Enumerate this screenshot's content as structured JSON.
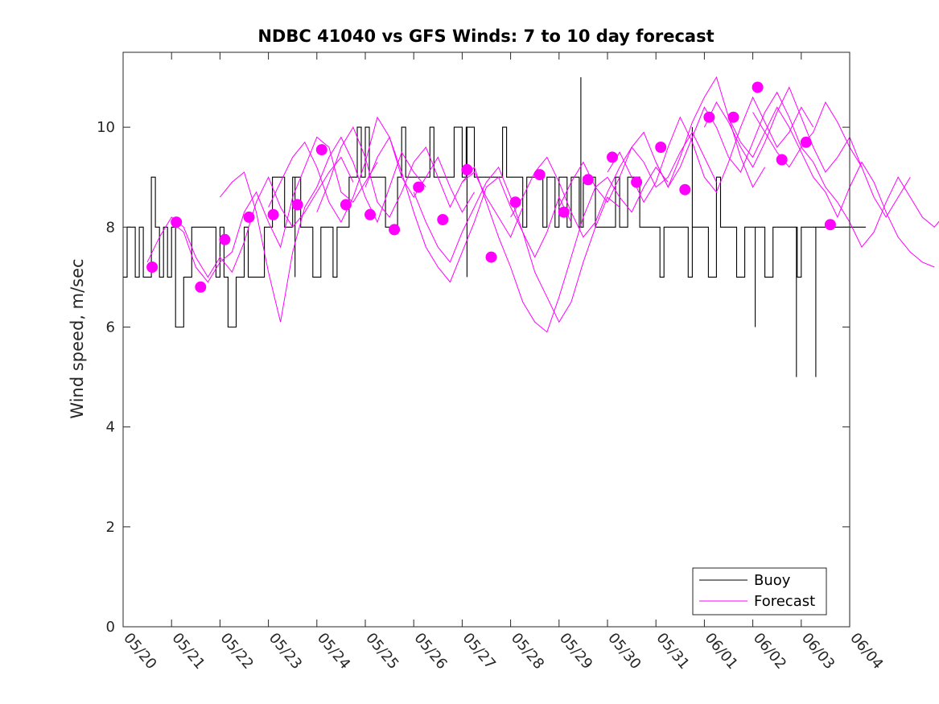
{
  "chart_data": {
    "type": "line",
    "title": "NDBC 41040 vs GFS Winds: 7 to 10 day forecast",
    "xlabel": "",
    "ylabel": "Wind speed, m/sec",
    "x_range_days": [
      0,
      15
    ],
    "x_ticks": [
      "05/20",
      "05/21",
      "05/22",
      "05/23",
      "05/24",
      "05/25",
      "05/26",
      "05/27",
      "05/28",
      "05/29",
      "05/30",
      "05/31",
      "06/01",
      "06/02",
      "06/03",
      "06/04"
    ],
    "ylim": [
      0,
      11.5
    ],
    "y_ticks": [
      0,
      2,
      4,
      6,
      8,
      10
    ],
    "grid": false,
    "legend": {
      "placement": "bottom-right",
      "entries": [
        "Buoy",
        "Forecast"
      ]
    },
    "colors": {
      "buoy": "#000000",
      "forecast": "#ff00ff"
    },
    "series": [
      {
        "name": "Buoy",
        "style": "step",
        "x_start_day": 0,
        "x_step_hours": 2,
        "values": [
          7,
          8,
          8,
          7,
          8,
          7,
          7,
          9,
          8,
          7,
          8,
          7,
          8,
          6,
          6,
          7,
          7,
          8,
          8,
          8,
          8,
          8,
          8,
          7,
          8,
          7,
          6,
          6,
          7,
          7,
          8,
          7,
          7,
          7,
          7,
          8,
          8,
          9,
          9,
          9,
          8,
          8,
          9,
          9,
          8,
          8,
          8,
          7,
          7,
          8,
          8,
          8,
          7,
          8,
          8,
          8,
          9,
          9,
          10,
          9,
          10,
          9,
          9,
          9,
          9,
          8,
          8,
          8,
          9,
          10,
          9,
          9,
          9,
          9,
          9,
          9,
          10,
          9,
          9,
          9,
          9,
          9,
          10,
          10,
          9,
          10,
          10,
          9,
          9,
          9,
          9,
          9,
          9,
          9,
          10,
          9,
          9,
          9,
          9,
          8,
          9,
          9,
          9,
          9,
          8,
          9,
          9,
          8,
          9,
          9,
          8,
          9,
          9,
          8,
          9,
          9,
          9,
          8,
          8,
          8,
          8,
          8,
          9,
          8,
          8,
          9,
          9,
          9,
          8,
          8,
          8,
          8,
          8,
          7,
          8,
          8,
          8,
          8,
          8,
          8,
          7,
          8,
          8,
          8,
          8,
          7,
          7,
          9,
          8,
          8,
          8,
          8,
          7,
          7,
          8,
          8,
          8,
          8,
          8,
          7,
          7,
          8,
          8,
          8,
          8,
          8,
          8,
          7,
          8,
          8,
          8,
          8,
          8,
          8,
          8,
          8,
          8,
          8,
          8,
          8,
          8,
          8,
          8,
          8
        ],
        "spikes": [
          {
            "day": 9.45,
            "value": 11
          },
          {
            "day": 11.75,
            "value": 10
          },
          {
            "day": 13.05,
            "value": 6
          },
          {
            "day": 13.9,
            "value": 5
          },
          {
            "day": 14.3,
            "value": 5
          },
          {
            "day": 3.55,
            "value": 7
          },
          {
            "day": 7.1,
            "value": 7
          }
        ]
      },
      {
        "name": "Forecast",
        "style": "line",
        "runs": [
          {
            "x_start_day": 0.5,
            "x_step_days": 0.25,
            "values": [
              7.3,
              7.8,
              8.2,
              8.0,
              7.4,
              7.0,
              7.4,
              7.1,
              7.7,
              8.5,
              9.0,
              8.4,
              8.0,
              8.3,
              8.7,
              9.1,
              9.4,
              8.9
            ]
          },
          {
            "x_start_day": 1.0,
            "x_step_days": 0.25,
            "values": [
              8.1,
              7.9,
              7.2,
              6.9,
              7.3,
              7.5,
              8.3,
              8.7,
              8.1,
              7.6,
              8.6,
              9.2,
              9.8,
              9.6,
              8.7,
              8.5,
              8.9,
              9.3
            ]
          },
          {
            "x_start_day": 2.0,
            "x_step_days": 0.25,
            "values": [
              8.6,
              8.9,
              9.1,
              8.3,
              7.1,
              6.1,
              7.5,
              8.4,
              8.8,
              9.4,
              9.8,
              9.3,
              8.6,
              8.1,
              8.8,
              9.5,
              9.1,
              8.8
            ]
          },
          {
            "x_start_day": 3.0,
            "x_step_days": 0.25,
            "values": [
              8.4,
              8.9,
              9.4,
              9.7,
              9.2,
              8.5,
              8.1,
              8.6,
              9.3,
              10.2,
              9.8,
              9.0,
              8.6,
              9.0,
              9.4,
              8.8,
              8.3,
              8.7
            ]
          },
          {
            "x_start_day": 4.0,
            "x_step_days": 0.25,
            "values": [
              8.3,
              8.9,
              9.6,
              10.0,
              9.4,
              8.5,
              8.2,
              8.7,
              9.3,
              9.6,
              9.0,
              8.4,
              8.9,
              9.1,
              8.6,
              8.2,
              7.8,
              8.4
            ]
          },
          {
            "x_start_day": 5.0,
            "x_step_days": 0.25,
            "values": [
              8.8,
              9.4,
              9.8,
              9.1,
              8.3,
              7.6,
              7.2,
              6.9,
              7.5,
              8.1,
              8.8,
              9.0,
              8.4,
              7.9,
              7.4,
              7.9,
              8.6,
              8.1
            ]
          },
          {
            "x_start_day": 6.0,
            "x_step_days": 0.25,
            "values": [
              8.7,
              8.1,
              7.6,
              7.3,
              7.9,
              8.4,
              8.9,
              9.2,
              8.6,
              7.9,
              7.1,
              6.6,
              6.1,
              6.5,
              7.3,
              8.0,
              8.6,
              8.4
            ]
          },
          {
            "x_start_day": 7.0,
            "x_step_days": 0.25,
            "values": [
              8.9,
              9.2,
              8.5,
              7.8,
              7.2,
              6.5,
              6.1,
              5.9,
              6.6,
              7.4,
              8.2,
              8.8,
              9.0,
              8.6,
              8.3,
              8.8,
              9.2,
              8.9
            ]
          },
          {
            "x_start_day": 8.0,
            "x_step_days": 0.25,
            "values": [
              8.2,
              8.6,
              9.1,
              9.4,
              8.9,
              8.3,
              7.8,
              8.1,
              8.7,
              9.2,
              9.6,
              9.3,
              8.8,
              9.0,
              9.5,
              9.9,
              9.4,
              8.9
            ]
          },
          {
            "x_start_day": 9.0,
            "x_step_days": 0.25,
            "values": [
              8.4,
              8.9,
              9.3,
              8.8,
              8.5,
              9.0,
              9.6,
              9.9,
              9.3,
              8.8,
              9.4,
              10.1,
              10.6,
              11.0,
              10.2,
              9.4,
              8.8,
              9.2
            ]
          },
          {
            "x_start_day": 10.0,
            "x_step_days": 0.25,
            "values": [
              9.1,
              9.5,
              9.0,
              8.5,
              8.9,
              9.6,
              10.2,
              9.7,
              9.0,
              8.7,
              9.3,
              10.0,
              10.6,
              10.1,
              9.6,
              9.9,
              10.4,
              10.0
            ]
          },
          {
            "x_start_day": 11.0,
            "x_step_days": 0.25,
            "values": [
              9.3,
              8.8,
              9.2,
              9.8,
              10.4,
              10.0,
              9.4,
              9.1,
              9.7,
              10.3,
              10.7,
              10.2,
              9.6,
              9.9,
              10.5,
              10.1,
              9.6,
              9.2
            ]
          },
          {
            "x_start_day": 12.0,
            "x_step_days": 0.25,
            "values": [
              10.0,
              10.5,
              10.1,
              9.6,
              9.2,
              9.7,
              10.3,
              10.8,
              10.2,
              9.6,
              9.1,
              9.4,
              9.8,
              9.2,
              8.6,
              8.2,
              8.6,
              9.0
            ]
          },
          {
            "x_start_day": 12.5,
            "x_step_days": 0.25,
            "values": [
              10.2,
              9.7,
              9.4,
              9.9,
              10.4,
              10.0,
              9.5,
              9.0,
              8.7,
              8.2,
              8.8,
              9.3,
              8.9,
              8.3,
              7.8,
              7.5,
              7.3,
              7.2
            ]
          },
          {
            "x_start_day": 13.0,
            "x_step_days": 0.25,
            "values": [
              10.3,
              9.9,
              9.5,
              9.2,
              9.6,
              9.3,
              8.8,
              8.5,
              8.1,
              7.6,
              7.9,
              8.5,
              9.0,
              8.6,
              8.2,
              8.0,
              8.3,
              8.4
            ]
          }
        ],
        "markers": {
          "x_day": [
            0.6,
            1.1,
            1.6,
            2.1,
            2.6,
            3.1,
            3.6,
            4.1,
            4.6,
            5.1,
            5.6,
            6.1,
            6.6,
            7.1,
            7.6,
            8.1,
            8.6,
            9.1,
            9.6,
            10.1,
            10.6,
            11.1,
            11.6,
            12.1,
            12.6,
            13.1,
            13.6,
            14.1,
            14.6
          ],
          "values": [
            7.2,
            8.1,
            6.8,
            7.75,
            8.2,
            8.25,
            8.45,
            9.55,
            8.45,
            8.25,
            7.95,
            8.8,
            8.15,
            9.15,
            7.4,
            8.5,
            9.05,
            8.3,
            8.95,
            9.4,
            8.9,
            9.6,
            8.75,
            10.2,
            10.2,
            10.8,
            9.35,
            9.7,
            8.05
          ]
        }
      }
    ]
  }
}
